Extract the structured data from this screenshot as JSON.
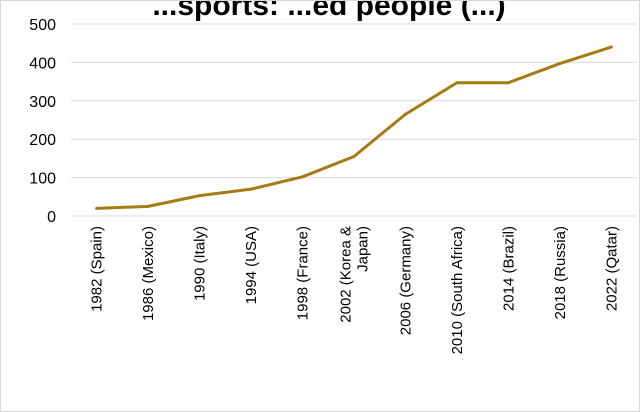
{
  "chart_data": {
    "type": "line",
    "title": "...sports: ...ed people (...)",
    "xlabel": "",
    "ylabel": "",
    "categories": [
      "1982 (Spain)",
      "1986 (Mexico)",
      "1990 (Italy)",
      "1994 (USA)",
      "1998 (France)",
      "2002 (Korea & Japan)",
      "2006 (Germany)",
      "2010 (South Africa)",
      "2014 (Brazil)",
      "2018 (Russia)",
      "2022 (Qatar)"
    ],
    "category_lines": [
      [
        "1982 (Spain)"
      ],
      [
        "1986 (Mexico)"
      ],
      [
        "1990 (Italy)"
      ],
      [
        "1994 (USA)"
      ],
      [
        "1998 (France)"
      ],
      [
        "2002 (Korea &",
        "Japan)"
      ],
      [
        "2006 (Germany)"
      ],
      [
        "2010 (South Africa)"
      ],
      [
        "2014 (Brazil)"
      ],
      [
        "2018 (Russia)"
      ],
      [
        "2022 (Qatar)"
      ]
    ],
    "series": [
      {
        "values": [
          20,
          25,
          53,
          70,
          102,
          155,
          265,
          347,
          347,
          397,
          440
        ]
      }
    ],
    "ylim": [
      0,
      500
    ],
    "yticks": [
      0,
      100,
      200,
      300,
      400,
      500
    ],
    "grid": true,
    "legend": "none",
    "colors": {
      "line": "#a67c12",
      "grid": "#d9d9d9",
      "axis": "#d9d9d9"
    }
  }
}
